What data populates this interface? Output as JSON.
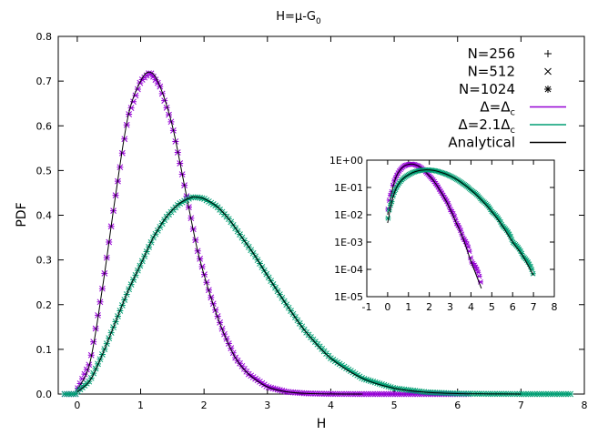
{
  "chart_data": {
    "type": "line",
    "title": "H=μ-G",
    "title_sub": "0",
    "xlabel": "H",
    "ylabel": "PDF",
    "xlim": [
      -0.3,
      8
    ],
    "ylim": [
      0,
      0.8
    ],
    "xticks": [
      "0",
      "1",
      "2",
      "3",
      "4",
      "5",
      "6",
      "7",
      "8"
    ],
    "yticks": [
      "0.0",
      "0.1",
      "0.2",
      "0.3",
      "0.4",
      "0.5",
      "0.6",
      "0.7",
      "0.8"
    ],
    "grid": false,
    "legend_position": "top-right",
    "legend": [
      {
        "label": "N=256",
        "marker": "+"
      },
      {
        "label": "N=512",
        "marker": "x"
      },
      {
        "label": "N=1024",
        "marker": "*"
      },
      {
        "label": "Δ=Δ",
        "sub": "c",
        "color": "#9400d3"
      },
      {
        "label": "Δ=2.1Δ",
        "sub": "c",
        "color": "#009e73"
      },
      {
        "label": "Analytical",
        "color": "#000000"
      }
    ],
    "colors": {
      "delta_c": "#9400d3",
      "delta_21": "#009e73",
      "analytical": "#000000"
    },
    "series": [
      {
        "name": "Δ=Δc",
        "color": "#9400d3",
        "x": [
          0,
          0.2,
          0.4,
          0.6,
          0.8,
          1.0,
          1.15,
          1.3,
          1.5,
          1.7,
          1.9,
          2.1,
          2.3,
          2.5,
          2.7,
          3.0,
          3.3,
          3.6,
          4.0,
          4.5
        ],
        "y": [
          0.01,
          0.07,
          0.24,
          0.44,
          0.62,
          0.7,
          0.72,
          0.69,
          0.6,
          0.46,
          0.32,
          0.22,
          0.14,
          0.08,
          0.045,
          0.016,
          0.005,
          0.0015,
          0.0002,
          2e-05
        ]
      },
      {
        "name": "Δ=2.1Δc",
        "color": "#009e73",
        "x": [
          0,
          0.2,
          0.4,
          0.6,
          0.8,
          1.0,
          1.2,
          1.4,
          1.6,
          1.8,
          1.9,
          2.0,
          2.2,
          2.4,
          2.6,
          2.8,
          3.0,
          3.3,
          3.6,
          4.0,
          4.5,
          5.0,
          5.5,
          6.0,
          6.5,
          7.0
        ],
        "y": [
          0.005,
          0.03,
          0.09,
          0.16,
          0.23,
          0.29,
          0.35,
          0.395,
          0.425,
          0.44,
          0.44,
          0.437,
          0.42,
          0.39,
          0.35,
          0.31,
          0.265,
          0.2,
          0.14,
          0.08,
          0.035,
          0.013,
          0.004,
          0.001,
          0.0003,
          6e-05
        ]
      }
    ],
    "inset": {
      "type": "line",
      "yscale": "log",
      "xlim": [
        -1,
        8
      ],
      "ylim": [
        1e-05,
        1
      ],
      "xticks": [
        "-1",
        "0",
        "1",
        "2",
        "3",
        "4",
        "5",
        "6",
        "7",
        "8"
      ],
      "yticks": [
        "1E+00",
        "1E-01",
        "1E-02",
        "1E-03",
        "1E-04",
        "1E-05"
      ]
    }
  }
}
